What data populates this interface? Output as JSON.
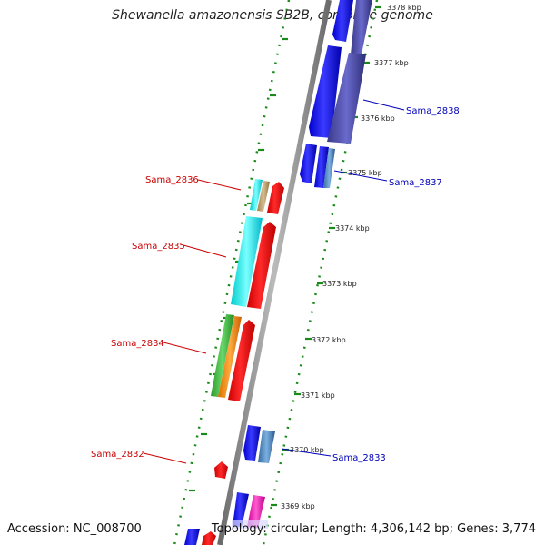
{
  "title": "Shewanella amazonensis SB2B, complete genome",
  "footer": {
    "accession": "Accession: NC_008700",
    "info": "Topology: circular; Length: 4,306,142 bp; Genes: 3,774"
  },
  "ticks": [
    "3378 kbp",
    "3377 kbp",
    "3376 kbp",
    "3375 kbp",
    "3374 kbp",
    "3373 kbp",
    "3372 kbp",
    "3371 kbp",
    "3370 kbp",
    "3369 kbp"
  ],
  "gene_labels": {
    "sama_2838": "Sama_2838",
    "sama_2837": "Sama_2837",
    "sama_2836": "Sama_2836",
    "sama_2835": "Sama_2835",
    "sama_2834": "Sama_2834",
    "sama_2833": "Sama_2833",
    "sama_2832": "Sama_2832"
  },
  "colors": {
    "forward_label": "#cc0000",
    "reverse_label": "#0000bb",
    "backbone": "#8c8c8c",
    "dots": "#1a8a1a"
  }
}
